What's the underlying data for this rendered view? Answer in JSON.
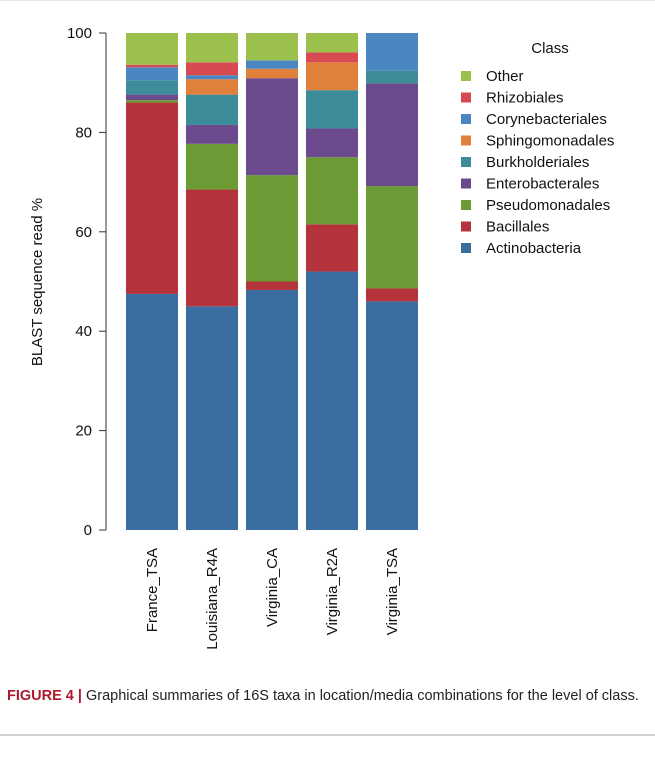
{
  "chart_data": {
    "type": "bar",
    "stacked": true,
    "title": "",
    "xlabel": "",
    "ylabel": "BLAST sequence read %",
    "ylim": [
      0,
      100
    ],
    "yticks": [
      0,
      20,
      40,
      60,
      80,
      100
    ],
    "grid": false,
    "legend_position": "right",
    "legend_title": "Class",
    "categories": [
      "France_TSA",
      "Louisiana_R4A",
      "Virginia_CA",
      "Virginia_R2A",
      "Virginia_TSA"
    ],
    "series": [
      {
        "name": "Actinobacteria",
        "color": "#3a6ea0",
        "values": [
          47.5,
          45.0,
          48.3,
          52.0,
          46.0
        ]
      },
      {
        "name": "Bacillales",
        "color": "#b5333b",
        "values": [
          38.5,
          23.5,
          1.7,
          9.5,
          2.6
        ]
      },
      {
        "name": "Pseudomonadales",
        "color": "#6c9a34",
        "values": [
          0.5,
          9.2,
          21.4,
          13.5,
          20.6
        ]
      },
      {
        "name": "Enterobacterales",
        "color": "#6c4a8e",
        "values": [
          1.1,
          3.8,
          19.5,
          5.8,
          20.7
        ]
      },
      {
        "name": "Burkholderiales",
        "color": "#3c8c99",
        "values": [
          2.9,
          6.1,
          0.0,
          7.7,
          2.5
        ]
      },
      {
        "name": "Sphingomonadales",
        "color": "#e0803a",
        "values": [
          0.0,
          3.1,
          1.9,
          5.6,
          0.0
        ]
      },
      {
        "name": "Corynebacteriales",
        "color": "#4a86c2",
        "values": [
          2.6,
          0.8,
          1.7,
          0.0,
          7.6
        ]
      },
      {
        "name": "Rhizobiales",
        "color": "#d84a51",
        "values": [
          0.5,
          2.6,
          0.0,
          2.0,
          0.0
        ]
      },
      {
        "name": "Other",
        "color": "#9cc04c",
        "values": [
          6.4,
          5.9,
          5.5,
          3.9,
          0.0
        ]
      }
    ],
    "legend_order": [
      "Other",
      "Rhizobiales",
      "Corynebacteriales",
      "Sphingomonadales",
      "Burkholderiales",
      "Enterobacterales",
      "Pseudomonadales",
      "Bacillales",
      "Actinobacteria"
    ]
  },
  "caption": {
    "lead": "FIGURE 4 |",
    "text": " Graphical summaries of 16S taxa in location/media combinations for the level of class."
  }
}
